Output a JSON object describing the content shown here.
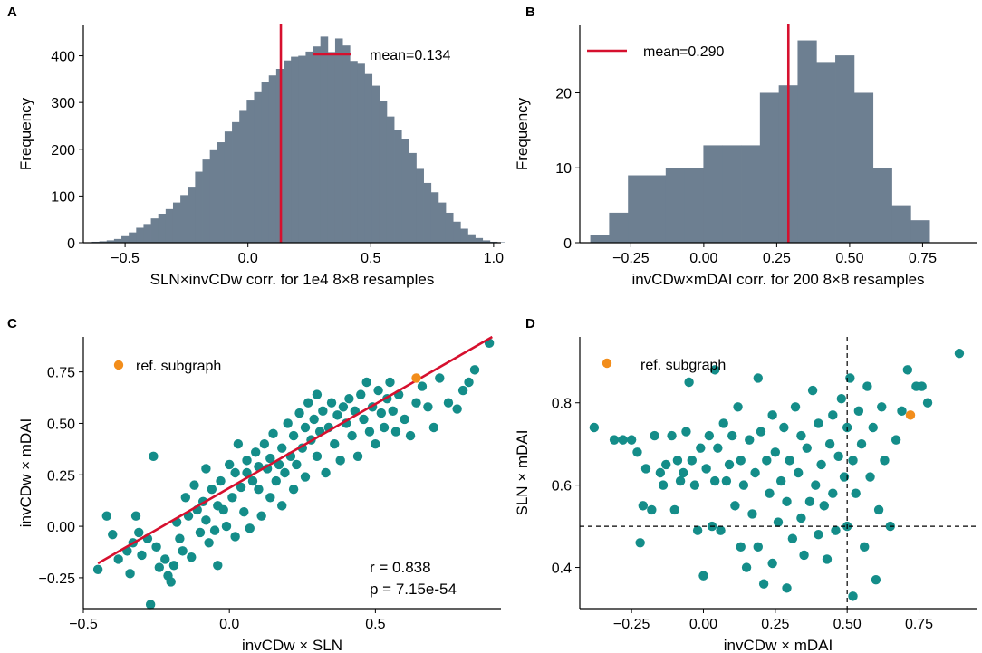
{
  "colors": {
    "bar": "#6d7f91",
    "mean_line": "#d6102e",
    "point": "#148d89",
    "ref_point": "#f28d1b",
    "fit_line": "#d6102e",
    "ref_line": "#000000"
  },
  "chart_data": [
    {
      "panel": "A",
      "type": "histogram",
      "xlabel": "SLN×invCDw corr. for 1e4 8×8 resamples",
      "ylabel": "Frequency",
      "xlim": [
        -0.67,
        1.03
      ],
      "ylim": [
        0,
        465
      ],
      "xticks": [
        -0.5,
        0.0,
        0.5,
        1.0
      ],
      "xtick_labels": [
        "−0.5",
        "0.0",
        "0.5",
        "1.0"
      ],
      "yticks": [
        0,
        100,
        200,
        300,
        400
      ],
      "ytick_labels": [
        "0",
        "100",
        "200",
        "300",
        "400"
      ],
      "bins": {
        "start": -0.635,
        "width": 0.03,
        "counts": [
          2,
          3,
          5,
          8,
          14,
          22,
          32,
          40,
          52,
          62,
          72,
          86,
          102,
          118,
          152,
          178,
          198,
          215,
          238,
          258,
          282,
          306,
          322,
          343,
          358,
          372,
          390,
          398,
          400,
          409,
          420,
          441,
          408,
          437,
          422,
          389,
          383,
          361,
          336,
          303,
          270,
          242,
          222,
          192,
          158,
          128,
          108,
          86,
          64,
          45,
          30,
          18,
          10,
          5,
          2,
          1
        ]
      },
      "mean_line": {
        "value": 0.134,
        "label": "mean=0.134"
      },
      "legend": {
        "position": "upper-right",
        "entries": [
          "mean=0.134"
        ]
      }
    },
    {
      "panel": "B",
      "type": "histogram",
      "xlabel": "invCDw×mDAI corr. for 200 8×8 resamples",
      "ylabel": "Frequency",
      "xlim": [
        -0.425,
        0.935
      ],
      "ylim": [
        0,
        29
      ],
      "xticks": [
        -0.25,
        0.0,
        0.25,
        0.5,
        0.75
      ],
      "xtick_labels": [
        "−0.25",
        "0.00",
        "0.25",
        "0.50",
        "0.75"
      ],
      "yticks": [
        0,
        10,
        20
      ],
      "ytick_labels": [
        "0",
        "10",
        "20"
      ],
      "bins": {
        "start": -0.389,
        "width": 0.0646,
        "counts": [
          1,
          4,
          9,
          9,
          10,
          10,
          13,
          13,
          13,
          20,
          21,
          27,
          24,
          25,
          20,
          10,
          5,
          3
        ]
      },
      "mean_line": {
        "value": 0.29,
        "label": "mean=0.290"
      },
      "legend": {
        "position": "upper-left",
        "entries": [
          "mean=0.290"
        ]
      }
    },
    {
      "panel": "C",
      "type": "scatter",
      "xlabel": "invCDw × SLN",
      "ylabel": "invCDw × mDAI",
      "xlim": [
        -0.5,
        0.93
      ],
      "ylim": [
        -0.4,
        0.92
      ],
      "xticks": [
        -0.5,
        0.0,
        0.5
      ],
      "xtick_labels": [
        "−0.5",
        "0.0",
        "0.5"
      ],
      "yticks": [
        -0.25,
        0.0,
        0.25,
        0.5,
        0.75
      ],
      "ytick_labels": [
        "−0.25",
        "0.00",
        "0.25",
        "0.50",
        "0.75"
      ],
      "legend": {
        "position": "upper-left",
        "entries": [
          "ref. subgraph"
        ]
      },
      "fit_line": {
        "x": [
          -0.45,
          0.9
        ],
        "y": [
          -0.18,
          0.92
        ]
      },
      "annotations": [
        "r = 0.838",
        "p = 7.15e-54"
      ],
      "ref_point": {
        "x": 0.64,
        "y": 0.72
      },
      "points": [
        [
          -0.45,
          -0.21
        ],
        [
          -0.42,
          0.05
        ],
        [
          -0.4,
          -0.04
        ],
        [
          -0.38,
          -0.16
        ],
        [
          -0.35,
          -0.12
        ],
        [
          -0.34,
          -0.23
        ],
        [
          -0.33,
          -0.08
        ],
        [
          -0.32,
          0.05
        ],
        [
          -0.31,
          -0.03
        ],
        [
          -0.3,
          -0.14
        ],
        [
          -0.28,
          -0.06
        ],
        [
          -0.27,
          -0.38
        ],
        [
          -0.26,
          0.34
        ],
        [
          -0.25,
          -0.1
        ],
        [
          -0.24,
          -0.2
        ],
        [
          -0.22,
          -0.16
        ],
        [
          -0.21,
          -0.24
        ],
        [
          -0.2,
          -0.27
        ],
        [
          -0.19,
          -0.19
        ],
        [
          -0.18,
          0.02
        ],
        [
          -0.17,
          -0.06
        ],
        [
          -0.16,
          -0.12
        ],
        [
          -0.15,
          0.14
        ],
        [
          -0.14,
          0.05
        ],
        [
          -0.13,
          -0.15
        ],
        [
          -0.12,
          0.2
        ],
        [
          -0.11,
          0.08
        ],
        [
          -0.1,
          -0.03
        ],
        [
          -0.09,
          0.12
        ],
        [
          -0.08,
          0.28
        ],
        [
          -0.08,
          0.03
        ],
        [
          -0.07,
          -0.08
        ],
        [
          -0.06,
          0.18
        ],
        [
          -0.05,
          -0.02
        ],
        [
          -0.04,
          0.1
        ],
        [
          -0.04,
          -0.19
        ],
        [
          -0.03,
          0.22
        ],
        [
          -0.02,
          0.08
        ],
        [
          -0.01,
          0.0
        ],
        [
          0.0,
          0.3
        ],
        [
          0.01,
          0.14
        ],
        [
          0.02,
          -0.05
        ],
        [
          0.02,
          0.26
        ],
        [
          0.03,
          0.4
        ],
        [
          0.04,
          0.19
        ],
        [
          0.05,
          0.07
        ],
        [
          0.06,
          0.32
        ],
        [
          0.06,
          0.26
        ],
        [
          0.07,
          -0.01
        ],
        [
          0.08,
          0.22
        ],
        [
          0.09,
          0.36
        ],
        [
          0.1,
          0.18
        ],
        [
          0.1,
          0.29
        ],
        [
          0.11,
          0.05
        ],
        [
          0.12,
          0.4
        ],
        [
          0.13,
          0.28
        ],
        [
          0.14,
          0.14
        ],
        [
          0.14,
          0.33
        ],
        [
          0.15,
          0.45
        ],
        [
          0.16,
          0.22
        ],
        [
          0.17,
          0.3
        ],
        [
          0.18,
          0.1
        ],
        [
          0.18,
          0.38
        ],
        [
          0.19,
          0.26
        ],
        [
          0.2,
          0.5
        ],
        [
          0.21,
          0.34
        ],
        [
          0.22,
          0.18
        ],
        [
          0.22,
          0.44
        ],
        [
          0.23,
          0.3
        ],
        [
          0.24,
          0.55
        ],
        [
          0.25,
          0.38
        ],
        [
          0.26,
          0.48
        ],
        [
          0.26,
          0.24
        ],
        [
          0.27,
          0.6
        ],
        [
          0.28,
          0.42
        ],
        [
          0.29,
          0.52
        ],
        [
          0.3,
          0.34
        ],
        [
          0.3,
          0.64
        ],
        [
          0.31,
          0.46
        ],
        [
          0.32,
          0.56
        ],
        [
          0.33,
          0.26
        ],
        [
          0.34,
          0.48
        ],
        [
          0.35,
          0.6
        ],
        [
          0.36,
          0.4
        ],
        [
          0.37,
          0.54
        ],
        [
          0.38,
          0.32
        ],
        [
          0.39,
          0.58
        ],
        [
          0.4,
          0.5
        ],
        [
          0.41,
          0.62
        ],
        [
          0.42,
          0.44
        ],
        [
          0.43,
          0.56
        ],
        [
          0.44,
          0.34
        ],
        [
          0.45,
          0.64
        ],
        [
          0.46,
          0.52
        ],
        [
          0.47,
          0.7
        ],
        [
          0.48,
          0.46
        ],
        [
          0.49,
          0.58
        ],
        [
          0.5,
          0.4
        ],
        [
          0.51,
          0.66
        ],
        [
          0.52,
          0.55
        ],
        [
          0.53,
          0.48
        ],
        [
          0.54,
          0.62
        ],
        [
          0.55,
          0.7
        ],
        [
          0.56,
          0.56
        ],
        [
          0.57,
          0.46
        ],
        [
          0.58,
          0.64
        ],
        [
          0.6,
          0.52
        ],
        [
          0.62,
          0.44
        ],
        [
          0.64,
          0.6
        ],
        [
          0.66,
          0.68
        ],
        [
          0.68,
          0.58
        ],
        [
          0.7,
          0.48
        ],
        [
          0.72,
          0.72
        ],
        [
          0.75,
          0.6
        ],
        [
          0.78,
          0.57
        ],
        [
          0.8,
          0.66
        ],
        [
          0.82,
          0.7
        ],
        [
          0.84,
          0.76
        ],
        [
          0.89,
          0.89
        ]
      ]
    },
    {
      "panel": "D",
      "type": "scatter",
      "xlabel": "invCDw × mDAI",
      "ylabel": "SLN × mDAI",
      "xlim": [
        -0.43,
        0.95
      ],
      "ylim": [
        0.3,
        0.96
      ],
      "xticks": [
        -0.25,
        0.0,
        0.25,
        0.5,
        0.75
      ],
      "xtick_labels": [
        "−0.25",
        "0.00",
        "0.25",
        "0.50",
        "0.75"
      ],
      "yticks": [
        0.4,
        0.6,
        0.8
      ],
      "ytick_labels": [
        "0.4",
        "0.6",
        "0.8"
      ],
      "legend": {
        "position": "upper-left",
        "entries": [
          "ref. subgraph"
        ]
      },
      "ref_lines": {
        "x": 0.5,
        "y": 0.5
      },
      "ref_point": {
        "x": 0.72,
        "y": 0.77
      },
      "points": [
        [
          -0.38,
          0.74
        ],
        [
          -0.31,
          0.71
        ],
        [
          -0.28,
          0.71
        ],
        [
          -0.25,
          0.71
        ],
        [
          -0.23,
          0.68
        ],
        [
          -0.22,
          0.46
        ],
        [
          -0.21,
          0.55
        ],
        [
          -0.2,
          0.64
        ],
        [
          -0.18,
          0.54
        ],
        [
          -0.17,
          0.72
        ],
        [
          -0.15,
          0.63
        ],
        [
          -0.14,
          0.6
        ],
        [
          -0.13,
          0.65
        ],
        [
          -0.11,
          0.72
        ],
        [
          -0.1,
          0.54
        ],
        [
          -0.09,
          0.66
        ],
        [
          -0.08,
          0.61
        ],
        [
          -0.07,
          0.63
        ],
        [
          -0.06,
          0.73
        ],
        [
          -0.05,
          0.85
        ],
        [
          -0.04,
          0.66
        ],
        [
          -0.03,
          0.6
        ],
        [
          -0.02,
          0.49
        ],
        [
          -0.01,
          0.69
        ],
        [
          0.0,
          0.38
        ],
        [
          0.01,
          0.64
        ],
        [
          0.02,
          0.72
        ],
        [
          0.03,
          0.5
        ],
        [
          0.04,
          0.61
        ],
        [
          0.04,
          0.88
        ],
        [
          0.05,
          0.69
        ],
        [
          0.06,
          0.49
        ],
        [
          0.07,
          0.75
        ],
        [
          0.08,
          0.61
        ],
        [
          0.09,
          0.65
        ],
        [
          0.1,
          0.72
        ],
        [
          0.11,
          0.55
        ],
        [
          0.12,
          0.79
        ],
        [
          0.13,
          0.45
        ],
        [
          0.13,
          0.66
        ],
        [
          0.14,
          0.6
        ],
        [
          0.15,
          0.4
        ],
        [
          0.16,
          0.71
        ],
        [
          0.17,
          0.53
        ],
        [
          0.18,
          0.63
        ],
        [
          0.19,
          0.86
        ],
        [
          0.19,
          0.45
        ],
        [
          0.2,
          0.73
        ],
        [
          0.21,
          0.36
        ],
        [
          0.22,
          0.66
        ],
        [
          0.23,
          0.58
        ],
        [
          0.24,
          0.77
        ],
        [
          0.24,
          0.41
        ],
        [
          0.25,
          0.68
        ],
        [
          0.26,
          0.51
        ],
        [
          0.27,
          0.61
        ],
        [
          0.28,
          0.74
        ],
        [
          0.29,
          0.56
        ],
        [
          0.29,
          0.35
        ],
        [
          0.3,
          0.66
        ],
        [
          0.31,
          0.47
        ],
        [
          0.32,
          0.79
        ],
        [
          0.33,
          0.63
        ],
        [
          0.34,
          0.52
        ],
        [
          0.34,
          0.72
        ],
        [
          0.35,
          0.43
        ],
        [
          0.36,
          0.69
        ],
        [
          0.37,
          0.56
        ],
        [
          0.38,
          0.83
        ],
        [
          0.39,
          0.6
        ],
        [
          0.4,
          0.48
        ],
        [
          0.4,
          0.75
        ],
        [
          0.41,
          0.65
        ],
        [
          0.42,
          0.55
        ],
        [
          0.43,
          0.42
        ],
        [
          0.44,
          0.7
        ],
        [
          0.45,
          0.77
        ],
        [
          0.45,
          0.58
        ],
        [
          0.46,
          0.49
        ],
        [
          0.47,
          0.67
        ],
        [
          0.48,
          0.81
        ],
        [
          0.49,
          0.62
        ],
        [
          0.5,
          0.74
        ],
        [
          0.5,
          0.5
        ],
        [
          0.51,
          0.86
        ],
        [
          0.52,
          0.66
        ],
        [
          0.52,
          0.33
        ],
        [
          0.53,
          0.58
        ],
        [
          0.54,
          0.78
        ],
        [
          0.55,
          0.7
        ],
        [
          0.56,
          0.45
        ],
        [
          0.57,
          0.84
        ],
        [
          0.58,
          0.62
        ],
        [
          0.59,
          0.74
        ],
        [
          0.6,
          0.37
        ],
        [
          0.61,
          0.54
        ],
        [
          0.62,
          0.79
        ],
        [
          0.63,
          0.66
        ],
        [
          0.65,
          0.5
        ],
        [
          0.67,
          0.71
        ],
        [
          0.69,
          0.78
        ],
        [
          0.71,
          0.88
        ],
        [
          0.74,
          0.84
        ],
        [
          0.76,
          0.84
        ],
        [
          0.78,
          0.8
        ],
        [
          0.89,
          0.92
        ]
      ]
    }
  ]
}
